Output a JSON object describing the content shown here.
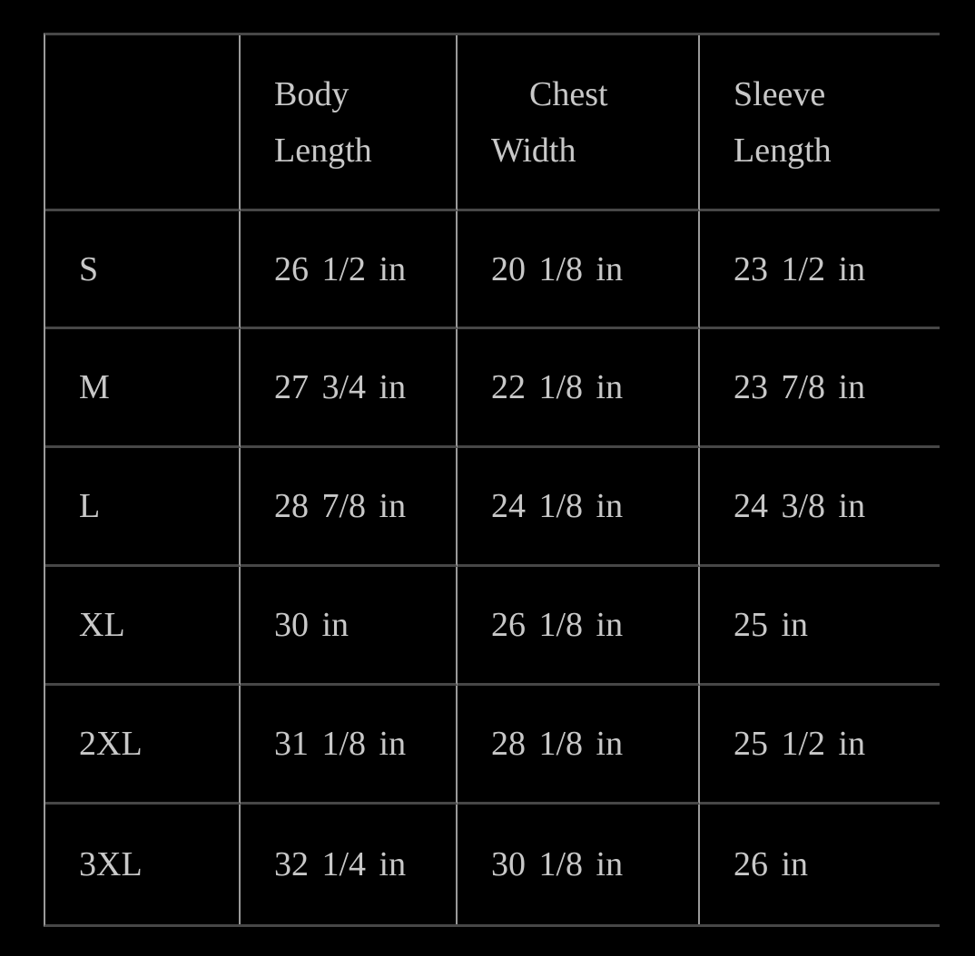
{
  "page": {
    "background_color": "#000000",
    "text_color": "#c8c8c8",
    "horizontal_rule_color": "#474747",
    "vertical_rule_color": "#9a9a9a"
  },
  "table": {
    "header": {
      "size_col": {
        "line1": "",
        "line2": ""
      },
      "body_length": {
        "line1": "Body",
        "line2": "Length"
      },
      "chest_width": {
        "line1": "Chest",
        "line2": "Width"
      },
      "sleeve_length": {
        "line1": "Sleeve",
        "line2": "Length"
      }
    },
    "rows": [
      {
        "size": "S",
        "body_length": "26 1/2 in",
        "chest_width": "20 1/8 in",
        "sleeve_length": "23 1/2 in"
      },
      {
        "size": "M",
        "body_length": "27 3/4 in",
        "chest_width": "22 1/8 in",
        "sleeve_length": "23 7/8 in"
      },
      {
        "size": "L",
        "body_length": "28 7/8 in",
        "chest_width": "24 1/8 in",
        "sleeve_length": "24 3/8 in"
      },
      {
        "size": "XL",
        "body_length": "30 in",
        "chest_width": "26 1/8 in",
        "sleeve_length": "25 in"
      },
      {
        "size": "2XL",
        "body_length": "31 1/8 in",
        "chest_width": "28 1/8 in",
        "sleeve_length": "25 1/2 in"
      },
      {
        "size": "3XL",
        "body_length": "32 1/4 in",
        "chest_width": "30 1/8 in",
        "sleeve_length": "26 in"
      }
    ]
  }
}
